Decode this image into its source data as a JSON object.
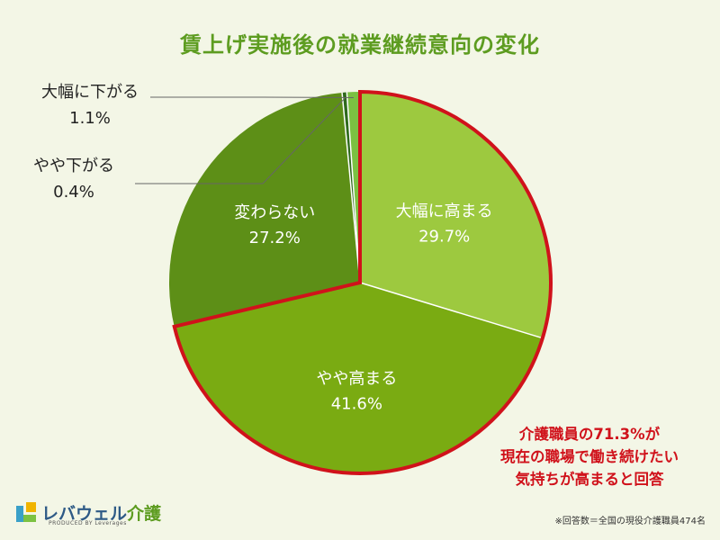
{
  "chart_data": {
    "type": "pie",
    "title": "賃上げ実施後の就業継続意向の変化",
    "start_angle_deg": 0,
    "direction": "clockwise",
    "slices": [
      {
        "label": "大幅に高まる",
        "value": 29.7,
        "value_text": "29.7%",
        "color": "#9dc93f",
        "label_pos": "inside"
      },
      {
        "label": "やや高まる",
        "value": 41.6,
        "value_text": "41.6%",
        "color": "#7aab12",
        "label_pos": "inside"
      },
      {
        "label": "変わらない",
        "value": 27.2,
        "value_text": "27.2%",
        "color": "#5d8f17",
        "label_pos": "inside"
      },
      {
        "label": "やや下がる",
        "value": 0.4,
        "value_text": "0.4%",
        "color": "#2f6a1c",
        "label_pos": "outside"
      },
      {
        "label": "大幅に下がる",
        "value": 1.1,
        "value_text": "1.1%",
        "color": "#7bc142",
        "label_pos": "outside"
      }
    ],
    "highlight": {
      "slices": [
        "大幅に高まる",
        "やや高まる"
      ],
      "color": "#d0121b"
    }
  },
  "callout": {
    "lines": [
      "介護職員の71.3%が",
      "現在の職場で働き続けたい",
      "気持ちが高まると回答"
    ],
    "color": "#d0121b"
  },
  "logo": {
    "main": "レバウェル",
    "accent": "介護",
    "sub": "PRODUCED BY Leverages"
  },
  "footnote": "※回答数＝全国の現役介護職員474名",
  "colors": {
    "background": "#f3f6e6",
    "title": "#5d9c20"
  }
}
